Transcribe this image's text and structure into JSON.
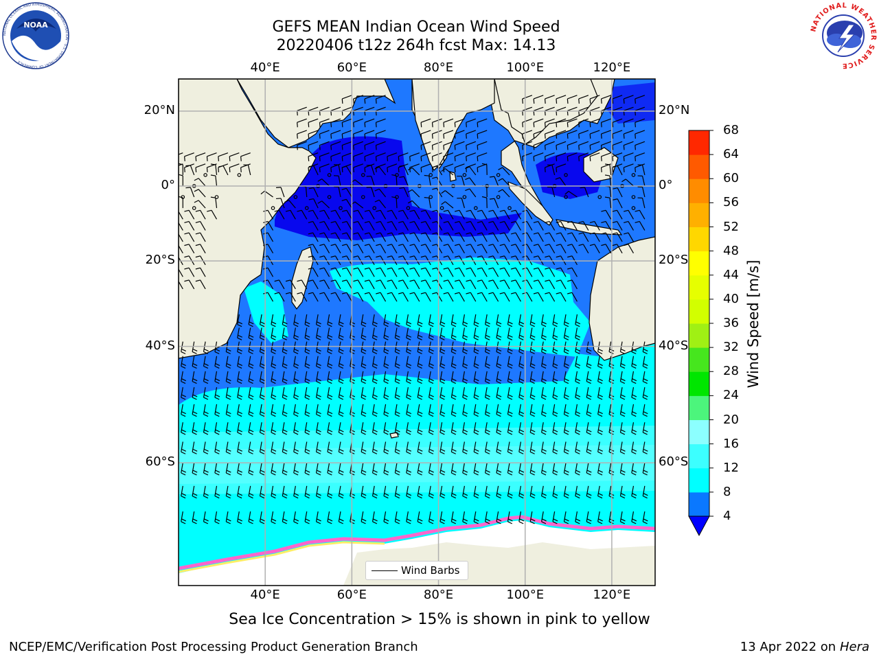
{
  "title": {
    "line1": "GEFS MEAN Indian Ocean Wind Speed",
    "line2": "20220406 t12z 264h fcst   Max: 14.13"
  },
  "logos": {
    "left": {
      "name": "NOAA",
      "ring_text": "NATIONAL OCEANIC AND ATMOSPHERIC ADMINISTRATION · U.S. DEPARTMENT OF COMMERCE"
    },
    "right": {
      "name": "NATIONAL WEATHER SERVICE"
    }
  },
  "axes": {
    "lon_ticks": [
      "40°E",
      "60°E",
      "80°E",
      "100°E",
      "120°E"
    ],
    "lon_values": [
      40,
      60,
      80,
      100,
      120
    ],
    "lat_ticks": [
      "20°N",
      "0°",
      "20°S",
      "40°S",
      "60°S"
    ],
    "lat_values": [
      20,
      0,
      -20,
      -40,
      -60
    ],
    "lon_range": [
      20,
      130
    ],
    "lat_range": [
      -73,
      28
    ],
    "gridlines": true
  },
  "colorbar": {
    "title": "Wind Speed [m/s]",
    "ticks": [
      "68",
      "64",
      "60",
      "56",
      "52",
      "48",
      "44",
      "40",
      "36",
      "32",
      "28",
      "24",
      "20",
      "16",
      "12",
      "8",
      "4"
    ],
    "levels": [
      4,
      8,
      12,
      16,
      20,
      24,
      28,
      32,
      36,
      40,
      44,
      48,
      52,
      56,
      60,
      64,
      68
    ],
    "colors": [
      "#0000ff",
      "#0a78ff",
      "#00ffff",
      "#3cffff",
      "#8cffff",
      "#4cf57c",
      "#00e600",
      "#46e61e",
      "#a0f014",
      "#d2ff00",
      "#e6ff00",
      "#ffff00",
      "#ffd700",
      "#ffb000",
      "#ff8c00",
      "#ff5a00",
      "#ff2800",
      "#ff0000"
    ],
    "extend": "min"
  },
  "legend": {
    "label": "Wind Barbs",
    "placement": "bottom-center"
  },
  "colors": {
    "land": "#efefdf",
    "wind_4_8": "#1e78ff",
    "wind_0_4": "#0808ee",
    "wind_8_12": "#00ffff",
    "wind_12_16": "#44ffff",
    "sea_ice": "#ff66cc",
    "antarctic_ice": "#ffffff",
    "gridline": "#b0b0b0"
  },
  "caption": "Sea Ice Concentration > 15% is shown in pink to yellow",
  "footer": {
    "left": "NCEP/EMC/Verification Post Processing Product Generation Branch",
    "right_date": "13 Apr 2022 on",
    "right_host": "Hera"
  }
}
